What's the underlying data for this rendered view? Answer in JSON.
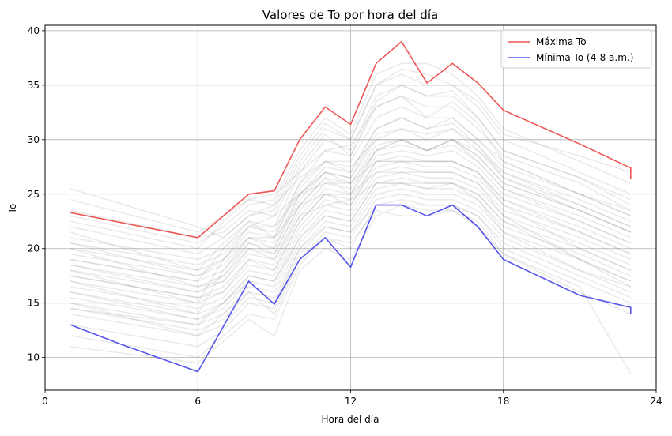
{
  "chart_data": {
    "type": "line",
    "title": "Valores de To por hora del día",
    "xlabel": "Hora del día",
    "ylabel": "To",
    "xlim": [
      0,
      24
    ],
    "ylim": [
      7,
      40.5
    ],
    "xticks": [
      0,
      6,
      12,
      18,
      24
    ],
    "yticks": [
      10,
      15,
      20,
      25,
      30,
      35,
      40
    ],
    "grid": true,
    "legend": "top-right",
    "background_series": {
      "description_color": "#808080",
      "opacity": 0.12,
      "hours": [
        1,
        6,
        7,
        8,
        9,
        10,
        11,
        12,
        13,
        14,
        15,
        16,
        17,
        18,
        21,
        23
      ],
      "series": [
        {
          "values": [
            23.0,
            20.5,
            22.0,
            24.0,
            24.5,
            29.0,
            32.0,
            30.5,
            36.0,
            37.0,
            37.0,
            36.0,
            34.0,
            31.0,
            28.0,
            26.0
          ]
        },
        {
          "values": [
            22.0,
            19.5,
            21.0,
            23.0,
            23.5,
            28.0,
            31.0,
            30.0,
            35.0,
            36.0,
            35.0,
            35.0,
            33.0,
            30.0,
            27.0,
            25.0
          ]
        },
        {
          "values": [
            21.0,
            19.0,
            20.0,
            22.5,
            22.0,
            27.0,
            30.0,
            29.0,
            34.0,
            35.0,
            34.0,
            34.0,
            32.0,
            29.0,
            26.5,
            24.0
          ]
        },
        {
          "values": [
            20.5,
            18.5,
            19.5,
            22.0,
            21.5,
            26.0,
            29.0,
            28.5,
            33.0,
            34.0,
            33.0,
            33.0,
            31.0,
            28.5,
            26.0,
            23.5
          ]
        },
        {
          "values": [
            20.0,
            18.0,
            19.0,
            21.5,
            21.0,
            25.5,
            28.0,
            28.0,
            32.0,
            33.0,
            32.0,
            32.0,
            30.0,
            28.0,
            25.0,
            23.0
          ]
        },
        {
          "values": [
            19.5,
            17.5,
            18.5,
            21.0,
            20.5,
            25.0,
            27.5,
            27.0,
            31.0,
            32.0,
            31.0,
            31.5,
            29.5,
            27.0,
            24.5,
            22.5
          ]
        },
        {
          "values": [
            19.0,
            17.0,
            18.0,
            20.5,
            20.0,
            24.5,
            27.0,
            26.5,
            30.0,
            31.0,
            30.5,
            31.0,
            29.0,
            26.5,
            24.0,
            22.0
          ]
        },
        {
          "values": [
            18.5,
            16.5,
            17.5,
            20.0,
            19.5,
            24.0,
            26.5,
            26.0,
            29.5,
            30.0,
            30.0,
            30.0,
            28.5,
            26.0,
            23.5,
            21.5
          ]
        },
        {
          "values": [
            18.0,
            16.0,
            17.0,
            19.5,
            19.0,
            23.5,
            26.0,
            25.5,
            29.0,
            29.5,
            29.0,
            29.5,
            28.0,
            25.5,
            23.0,
            21.0
          ]
        },
        {
          "values": [
            17.5,
            15.5,
            16.5,
            19.0,
            18.5,
            23.0,
            25.5,
            25.0,
            28.5,
            29.0,
            28.5,
            29.0,
            27.5,
            25.0,
            22.5,
            20.5
          ]
        },
        {
          "values": [
            17.0,
            15.0,
            16.0,
            18.5,
            18.0,
            22.5,
            25.0,
            24.5,
            28.0,
            28.5,
            28.0,
            28.0,
            27.0,
            24.5,
            22.0,
            20.0
          ]
        },
        {
          "values": [
            16.5,
            14.5,
            15.5,
            18.0,
            17.5,
            22.0,
            24.5,
            24.0,
            27.5,
            28.0,
            27.5,
            27.5,
            26.5,
            24.0,
            21.5,
            19.5
          ]
        },
        {
          "values": [
            16.0,
            14.0,
            15.0,
            17.5,
            17.0,
            21.5,
            24.0,
            23.5,
            27.0,
            27.5,
            27.0,
            27.0,
            26.0,
            23.5,
            21.0,
            19.0
          ]
        },
        {
          "values": [
            15.5,
            13.5,
            14.5,
            17.0,
            16.5,
            21.0,
            23.5,
            23.0,
            26.5,
            27.0,
            26.5,
            26.5,
            25.5,
            23.0,
            20.5,
            18.5
          ]
        },
        {
          "values": [
            15.0,
            13.0,
            14.0,
            16.5,
            16.0,
            20.5,
            23.0,
            22.5,
            26.0,
            26.5,
            26.0,
            26.0,
            25.0,
            22.5,
            20.0,
            18.0
          ]
        },
        {
          "values": [
            14.5,
            12.5,
            13.5,
            16.0,
            15.5,
            20.0,
            22.5,
            22.0,
            25.5,
            26.0,
            25.5,
            25.5,
            24.5,
            22.0,
            19.5,
            17.5
          ]
        },
        {
          "values": [
            14.0,
            12.0,
            13.0,
            15.5,
            15.0,
            19.5,
            22.0,
            21.5,
            25.0,
            25.5,
            25.0,
            25.0,
            24.0,
            21.5,
            19.0,
            17.0
          ]
        },
        {
          "values": [
            13.0,
            11.0,
            12.5,
            15.0,
            14.5,
            19.0,
            21.5,
            21.0,
            24.5,
            25.0,
            24.5,
            24.5,
            23.5,
            21.0,
            18.0,
            16.0
          ]
        },
        {
          "values": [
            12.0,
            10.0,
            12.0,
            14.0,
            13.5,
            18.5,
            21.0,
            20.0,
            24.0,
            24.5,
            24.0,
            24.0,
            23.0,
            20.0,
            17.0,
            15.0
          ]
        },
        {
          "values": [
            11.0,
            9.5,
            11.5,
            13.5,
            12.0,
            18.0,
            20.0,
            19.0,
            23.0,
            24.0,
            23.5,
            23.5,
            22.0,
            19.5,
            16.0,
            14.0
          ]
        },
        {
          "values": [
            24.5,
            21.5,
            23.0,
            24.5,
            25.0,
            27.0,
            29.0,
            29.5,
            33.0,
            34.0,
            32.0,
            33.5,
            31.5,
            28.0,
            25.0,
            23.0
          ]
        },
        {
          "values": [
            25.5,
            22.0,
            21.0,
            23.0,
            24.0,
            26.5,
            28.0,
            27.5,
            30.0,
            30.0,
            29.0,
            30.0,
            28.5,
            26.0,
            23.5,
            21.5
          ]
        },
        {
          "values": [
            18.0,
            15.0,
            19.0,
            22.0,
            23.0,
            25.0,
            26.0,
            26.0,
            28.0,
            28.0,
            28.0,
            28.0,
            27.0,
            24.0,
            20.0,
            18.0
          ]
        },
        {
          "values": [
            17.0,
            14.0,
            18.0,
            21.0,
            21.0,
            24.0,
            25.0,
            25.0,
            27.0,
            27.0,
            27.0,
            27.0,
            26.0,
            23.0,
            19.0,
            17.0
          ]
        },
        {
          "values": [
            20.0,
            16.5,
            17.0,
            20.0,
            19.0,
            23.0,
            24.0,
            24.5,
            26.0,
            26.0,
            26.0,
            26.0,
            25.0,
            22.5,
            19.0,
            16.5
          ]
        },
        {
          "values": [
            19.0,
            17.0,
            20.0,
            22.0,
            22.0,
            25.0,
            27.0,
            26.0,
            29.0,
            30.0,
            29.0,
            30.0,
            29.0,
            27.0,
            24.0,
            22.0
          ]
        },
        {
          "values": [
            16.0,
            13.5,
            15.0,
            17.0,
            15.0,
            20.0,
            22.0,
            21.5,
            24.0,
            24.0,
            24.0,
            24.0,
            23.0,
            20.5,
            17.5,
            15.5
          ]
        },
        {
          "values": [
            21.5,
            18.0,
            20.5,
            22.5,
            21.0,
            26.0,
            28.0,
            27.0,
            31.0,
            32.0,
            31.0,
            32.0,
            30.0,
            27.5,
            25.0,
            23.5
          ]
        },
        {
          "values": [
            15.0,
            12.0,
            14.0,
            16.0,
            14.0,
            19.0,
            21.0,
            20.5,
            23.5,
            23.0,
            23.0,
            23.5,
            22.5,
            19.5,
            16.5,
            8.5
          ]
        },
        {
          "values": [
            22.5,
            20.0,
            22.5,
            24.5,
            24.0,
            28.5,
            31.5,
            30.0,
            35.0,
            36.5,
            36.0,
            35.0,
            33.5,
            30.5,
            28.5,
            27.0
          ]
        },
        {
          "values": [
            18.5,
            16.0,
            17.5,
            20.5,
            19.5,
            24.0,
            26.5,
            25.0,
            29.0,
            30.0,
            29.0,
            30.0,
            28.0,
            25.5,
            22.5,
            20.5
          ]
        },
        {
          "values": [
            17.5,
            15.5,
            16.0,
            19.0,
            18.0,
            22.5,
            25.0,
            24.0,
            28.0,
            28.0,
            28.0,
            28.0,
            27.0,
            24.5,
            21.5,
            19.5
          ]
        },
        {
          "values": [
            20.5,
            17.5,
            19.0,
            21.0,
            20.0,
            25.0,
            27.0,
            26.5,
            30.5,
            31.0,
            30.0,
            31.0,
            29.5,
            26.5,
            23.5,
            21.5
          ]
        },
        {
          "values": [
            14.5,
            13.0,
            15.0,
            17.5,
            17.0,
            21.0,
            23.0,
            22.5,
            26.0,
            26.0,
            25.5,
            26.0,
            24.5,
            21.5,
            18.0,
            16.5
          ]
        },
        {
          "values": [
            23.5,
            21.0,
            21.5,
            23.5,
            23.0,
            27.5,
            30.5,
            28.5,
            33.5,
            35.0,
            34.0,
            34.5,
            32.0,
            29.0,
            26.5,
            24.5
          ]
        }
      ]
    },
    "series": [
      {
        "name": "Máxima To",
        "color": "#ee5555",
        "x": [
          1,
          6,
          8,
          9,
          10,
          11,
          12,
          13,
          14,
          15,
          16,
          17,
          18,
          21,
          23,
          23
        ],
        "values": [
          23.3,
          21.0,
          25.0,
          25.3,
          30.0,
          33.0,
          31.4,
          37.0,
          39.0,
          35.2,
          37.0,
          35.2,
          32.7,
          29.6,
          27.4,
          26.4
        ]
      },
      {
        "name": "Mínima To (4-8 a.m.)",
        "color": "#5555ee",
        "x": [
          1,
          3,
          6,
          8,
          9,
          10,
          11,
          12,
          13,
          14,
          15,
          16,
          17,
          18,
          21,
          23,
          23
        ],
        "values": [
          13.0,
          11.2,
          8.7,
          17.0,
          14.9,
          19.0,
          21.0,
          18.3,
          24.0,
          24.0,
          23.0,
          24.0,
          22.0,
          19.0,
          15.7,
          14.6,
          14.0
        ]
      }
    ]
  }
}
